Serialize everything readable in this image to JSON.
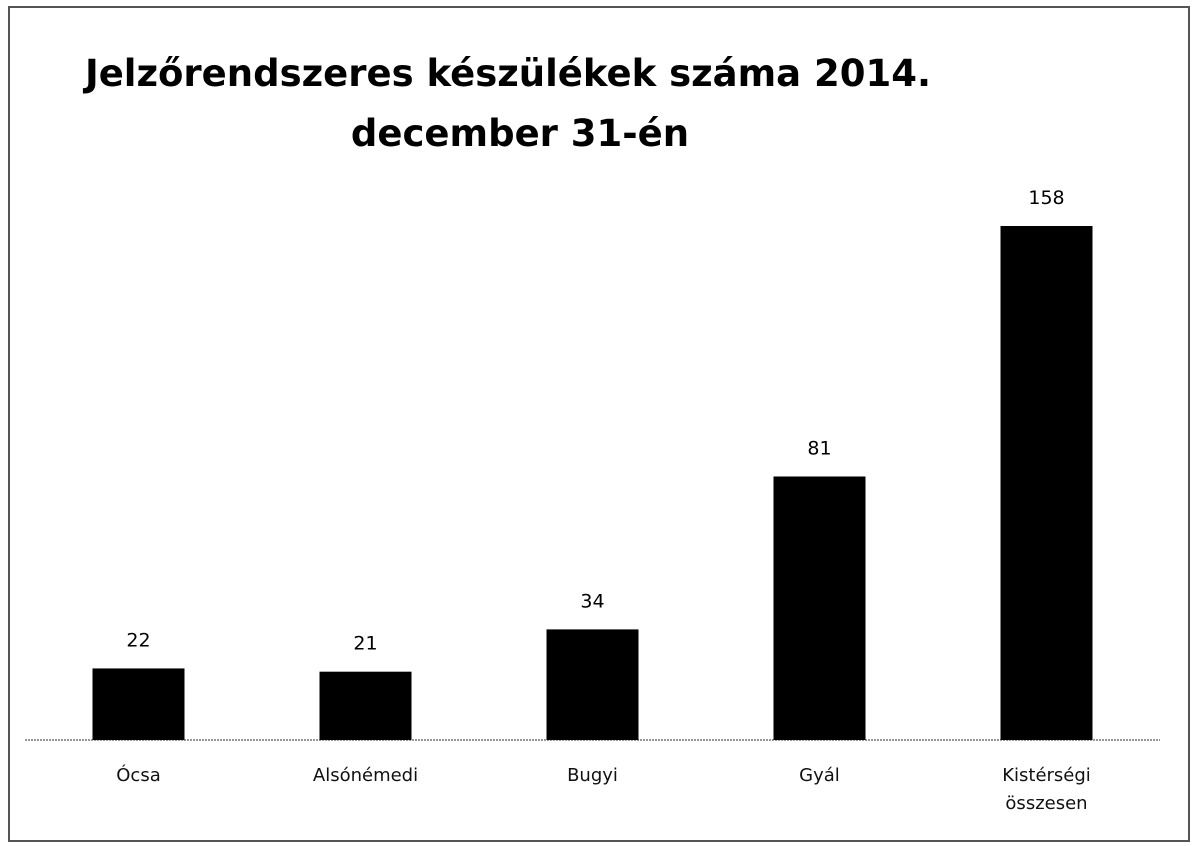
{
  "chart_data": {
    "type": "bar",
    "title": [
      "Jelzőrendszeres készülékek száma 2014.",
      "december 31-én"
    ],
    "categories": [
      "Ócsa",
      "Alsónémedi",
      "Bugyi",
      "Gyál",
      "Kistérségi összesen"
    ],
    "values": [
      22,
      21,
      34,
      81,
      158
    ],
    "color": "#000000"
  }
}
